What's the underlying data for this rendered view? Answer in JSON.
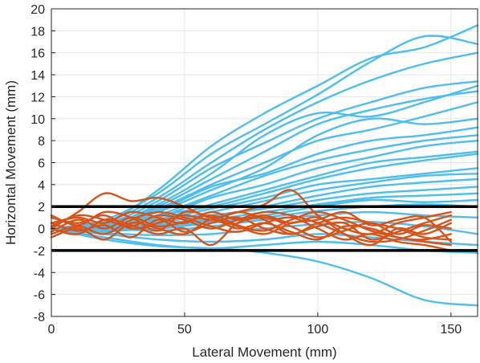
{
  "chart_data": {
    "type": "line",
    "title": "",
    "xlabel": "Lateral Movement (mm)",
    "ylabel": "Horizontal Movement (mm)",
    "xlim": [
      0,
      160
    ],
    "ylim": [
      -8,
      20
    ],
    "xticks": [
      0,
      50,
      100,
      150
    ],
    "yticks": [
      -8,
      -6,
      -4,
      -2,
      0,
      2,
      4,
      6,
      8,
      10,
      12,
      14,
      16,
      18,
      20
    ],
    "grid": true,
    "legend": "none",
    "threshold_lines": [
      {
        "y": 2,
        "color": "#000000"
      },
      {
        "y": -2,
        "color": "#000000"
      }
    ],
    "series": [
      {
        "group": "blue",
        "color": "#4DBEEE",
        "x": [
          0,
          20,
          40,
          60,
          80,
          100,
          120,
          140,
          160
        ],
        "y": [
          0,
          0.5,
          3.5,
          7.5,
          10.5,
          13.0,
          15.5,
          16.5,
          18.5
        ]
      },
      {
        "group": "blue",
        "color": "#4DBEEE",
        "x": [
          0,
          20,
          40,
          60,
          80,
          100,
          120,
          140,
          160
        ],
        "y": [
          0,
          0.8,
          3.2,
          6.8,
          9.5,
          12.2,
          15.2,
          17.5,
          16.8
        ]
      },
      {
        "group": "blue",
        "color": "#4DBEEE",
        "x": [
          0,
          20,
          40,
          60,
          80,
          100,
          120,
          140,
          160
        ],
        "y": [
          0,
          0.6,
          2.8,
          6.0,
          9.0,
          11.5,
          13.5,
          15.0,
          16.0
        ]
      },
      {
        "group": "blue",
        "color": "#4DBEEE",
        "x": [
          0,
          20,
          40,
          60,
          80,
          100,
          120,
          140,
          160
        ],
        "y": [
          0,
          0.4,
          2.5,
          5.5,
          7.8,
          10.0,
          11.5,
          12.8,
          13.4
        ]
      },
      {
        "group": "blue",
        "color": "#4DBEEE",
        "x": [
          0,
          20,
          40,
          60,
          80,
          100,
          120,
          140,
          160
        ],
        "y": [
          0,
          0.2,
          2.2,
          5.0,
          8.5,
          10.5,
          10.2,
          11.5,
          13.0
        ]
      },
      {
        "group": "blue",
        "color": "#4DBEEE",
        "x": [
          0,
          20,
          40,
          60,
          80,
          100,
          120,
          140,
          160
        ],
        "y": [
          0,
          0.3,
          2.0,
          4.5,
          7.0,
          9.5,
          10.8,
          11.8,
          12.5
        ]
      },
      {
        "group": "blue",
        "color": "#4DBEEE",
        "x": [
          0,
          20,
          40,
          60,
          80,
          100,
          120,
          140,
          160
        ],
        "y": [
          0,
          0.5,
          1.8,
          4.0,
          6.0,
          8.0,
          9.0,
          10.2,
          11.5
        ]
      },
      {
        "group": "blue",
        "color": "#4DBEEE",
        "x": [
          0,
          20,
          40,
          60,
          80,
          100,
          120,
          140,
          160
        ],
        "y": [
          0,
          0.1,
          1.5,
          3.5,
          5.5,
          8.5,
          10.0,
          9.5,
          10.0
        ]
      },
      {
        "group": "blue",
        "color": "#4DBEEE",
        "x": [
          0,
          20,
          40,
          60,
          80,
          100,
          120,
          140,
          160
        ],
        "y": [
          0,
          0.2,
          1.6,
          3.8,
          5.0,
          6.8,
          8.0,
          8.5,
          9.2
        ]
      },
      {
        "group": "blue",
        "color": "#4DBEEE",
        "x": [
          0,
          20,
          40,
          60,
          80,
          100,
          120,
          140,
          160
        ],
        "y": [
          0,
          -0.2,
          1.2,
          3.0,
          4.8,
          6.2,
          7.2,
          8.0,
          8.5
        ]
      },
      {
        "group": "blue",
        "color": "#4DBEEE",
        "x": [
          0,
          20,
          40,
          60,
          80,
          100,
          120,
          140,
          160
        ],
        "y": [
          0,
          0.3,
          1.0,
          2.8,
          4.0,
          5.5,
          6.5,
          7.5,
          8.0
        ]
      },
      {
        "group": "blue",
        "color": "#4DBEEE",
        "x": [
          0,
          20,
          40,
          60,
          80,
          100,
          120,
          140,
          160
        ],
        "y": [
          0,
          0.0,
          0.8,
          2.2,
          3.5,
          4.8,
          6.0,
          6.5,
          7.0
        ]
      },
      {
        "group": "blue",
        "color": "#4DBEEE",
        "x": [
          0,
          20,
          40,
          60,
          80,
          100,
          120,
          140,
          160
        ],
        "y": [
          0,
          0.1,
          1.2,
          2.0,
          3.2,
          4.5,
          5.5,
          6.2,
          6.8
        ]
      },
      {
        "group": "blue",
        "color": "#4DBEEE",
        "x": [
          0,
          20,
          40,
          60,
          80,
          100,
          120,
          140,
          160
        ],
        "y": [
          0,
          0.2,
          0.8,
          1.8,
          2.8,
          4.0,
          4.5,
          5.0,
          5.5
        ]
      },
      {
        "group": "blue",
        "color": "#4DBEEE",
        "x": [
          0,
          20,
          40,
          60,
          80,
          100,
          120,
          140,
          160
        ],
        "y": [
          0,
          -0.3,
          0.5,
          1.5,
          2.5,
          3.5,
          4.2,
          4.8,
          5.0
        ]
      },
      {
        "group": "blue",
        "color": "#4DBEEE",
        "x": [
          0,
          20,
          40,
          60,
          80,
          100,
          120,
          140,
          160
        ],
        "y": [
          0,
          0.0,
          0.4,
          1.0,
          2.0,
          3.0,
          3.8,
          4.2,
          4.5
        ]
      },
      {
        "group": "blue",
        "color": "#4DBEEE",
        "x": [
          0,
          20,
          40,
          60,
          80,
          100,
          120,
          140,
          160
        ],
        "y": [
          0,
          0.2,
          0.6,
          1.2,
          1.8,
          2.6,
          3.2,
          3.5,
          3.8
        ]
      },
      {
        "group": "blue",
        "color": "#4DBEEE",
        "x": [
          0,
          20,
          40,
          60,
          80,
          100,
          120,
          140,
          160
        ],
        "y": [
          0,
          -0.1,
          0.3,
          0.8,
          1.5,
          2.2,
          2.8,
          3.0,
          3.2
        ]
      },
      {
        "group": "blue",
        "color": "#4DBEEE",
        "x": [
          0,
          20,
          40,
          60,
          80,
          100,
          120,
          140,
          160
        ],
        "y": [
          0,
          0.1,
          0.2,
          0.6,
          1.2,
          2.0,
          2.6,
          2.4,
          2.6
        ]
      },
      {
        "group": "blue",
        "color": "#4DBEEE",
        "x": [
          0,
          20,
          40,
          60,
          80,
          100,
          120,
          140,
          160
        ],
        "y": [
          0,
          -0.2,
          0.0,
          0.5,
          1.0,
          1.6,
          2.0,
          2.2,
          2.0
        ]
      },
      {
        "group": "blue",
        "color": "#4DBEEE",
        "x": [
          0,
          20,
          40,
          60,
          80,
          100,
          120,
          140,
          160
        ],
        "y": [
          0,
          0.0,
          -0.2,
          0.2,
          0.8,
          1.2,
          1.5,
          1.2,
          1.0
        ]
      },
      {
        "group": "blue",
        "color": "#4DBEEE",
        "x": [
          0,
          20,
          40,
          60,
          80,
          100,
          120,
          140,
          160
        ],
        "y": [
          0,
          -0.4,
          -0.6,
          -0.5,
          0.0,
          0.4,
          0.6,
          0.2,
          -0.5
        ]
      },
      {
        "group": "blue",
        "color": "#4DBEEE",
        "x": [
          0,
          20,
          40,
          60,
          80,
          100,
          120,
          140,
          160
        ],
        "y": [
          0,
          -0.5,
          -1.0,
          -1.2,
          -1.0,
          -0.5,
          -0.8,
          -1.2,
          -1.5
        ]
      },
      {
        "group": "blue",
        "color": "#4DBEEE",
        "x": [
          0,
          20,
          40,
          60,
          80,
          100,
          120,
          140,
          160
        ],
        "y": [
          0,
          -0.8,
          -1.5,
          -1.8,
          -1.5,
          -1.2,
          -1.5,
          -2.0,
          -2.2
        ]
      },
      {
        "group": "blue",
        "color": "#4DBEEE",
        "x": [
          0,
          20,
          40,
          60,
          80,
          100,
          120,
          140,
          160
        ],
        "y": [
          0,
          -1.0,
          -1.6,
          -1.8,
          -2.2,
          -3.0,
          -4.5,
          -6.5,
          -7.0
        ]
      },
      {
        "group": "orange",
        "color": "#D95319",
        "x": [
          0,
          10,
          20,
          30,
          40,
          50,
          60,
          70,
          80,
          90,
          100,
          110,
          120,
          130,
          140,
          150
        ],
        "y": [
          0,
          1.5,
          3.2,
          2.5,
          2.8,
          2.0,
          1.0,
          1.5,
          2.2,
          3.5,
          1.2,
          0.0,
          -0.5,
          0.5,
          1.0,
          1.5
        ]
      },
      {
        "group": "orange",
        "color": "#D95319",
        "x": [
          0,
          10,
          20,
          30,
          40,
          50,
          60,
          70,
          80,
          90,
          100,
          110,
          120,
          130,
          140,
          150
        ],
        "y": [
          0.5,
          1.0,
          0.5,
          1.5,
          1.0,
          0.5,
          1.5,
          0.8,
          1.2,
          0.5,
          1.0,
          -0.5,
          -1.5,
          0.0,
          -0.5,
          0.5
        ]
      },
      {
        "group": "orange",
        "color": "#D95319",
        "x": [
          0,
          10,
          20,
          30,
          40,
          50,
          60,
          70,
          80,
          90,
          100,
          110,
          120,
          130,
          140,
          150
        ],
        "y": [
          -0.5,
          0.2,
          -0.5,
          0.8,
          1.5,
          1.0,
          0.2,
          -0.3,
          0.5,
          1.0,
          0.0,
          -1.0,
          -0.5,
          -1.2,
          -1.5,
          -2.0
        ]
      },
      {
        "group": "orange",
        "color": "#D95319",
        "x": [
          0,
          10,
          20,
          30,
          40,
          50,
          60,
          70,
          80,
          90,
          100,
          110,
          120,
          130,
          140,
          150
        ],
        "y": [
          1.0,
          0.5,
          1.2,
          0.0,
          0.5,
          1.2,
          0.8,
          1.5,
          0.8,
          -0.5,
          0.5,
          1.0,
          0.5,
          0.0,
          -0.8,
          -1.0
        ]
      },
      {
        "group": "orange",
        "color": "#D95319",
        "x": [
          0,
          10,
          20,
          30,
          40,
          50,
          60,
          70,
          80,
          90,
          100,
          110,
          120,
          130,
          140,
          150
        ],
        "y": [
          0.0,
          -0.5,
          0.8,
          0.3,
          -0.5,
          0.0,
          -1.5,
          0.5,
          1.0,
          0.2,
          -0.8,
          -0.2,
          0.5,
          -0.5,
          0.3,
          0.0
        ]
      },
      {
        "group": "orange",
        "color": "#D95319",
        "x": [
          0,
          10,
          20,
          30,
          40,
          50,
          60,
          70,
          80,
          90,
          100,
          110,
          120,
          130,
          140,
          150
        ],
        "y": [
          -0.3,
          0.8,
          0.0,
          1.0,
          0.2,
          0.6,
          1.2,
          0.3,
          -0.2,
          0.8,
          1.5,
          0.8,
          -0.2,
          -0.8,
          -1.2,
          -1.5
        ]
      },
      {
        "group": "orange",
        "color": "#D95319",
        "x": [
          0,
          10,
          20,
          30,
          40,
          50,
          60,
          70,
          80,
          90,
          100,
          110,
          120,
          130,
          140,
          150
        ],
        "y": [
          0.5,
          -0.2,
          0.3,
          -0.8,
          0.8,
          -0.3,
          0.5,
          1.0,
          0.0,
          -0.5,
          0.2,
          0.5,
          -1.0,
          -0.3,
          0.5,
          1.2
        ]
      },
      {
        "group": "orange",
        "color": "#D95319",
        "x": [
          0,
          10,
          20,
          30,
          40,
          50,
          60,
          70,
          80,
          90,
          100,
          110,
          120,
          130,
          140,
          150
        ],
        "y": [
          0.2,
          1.2,
          0.8,
          0.2,
          1.2,
          0.8,
          0.0,
          0.8,
          1.5,
          1.2,
          0.5,
          -0.5,
          -1.2,
          -1.0,
          -0.2,
          0.8
        ]
      },
      {
        "group": "orange",
        "color": "#D95319",
        "x": [
          0,
          10,
          20,
          30,
          40,
          50,
          60,
          70,
          80,
          90,
          100,
          110,
          120,
          130,
          140,
          150
        ],
        "y": [
          -0.8,
          0.0,
          -1.0,
          0.5,
          0.0,
          -0.5,
          0.8,
          0.0,
          0.5,
          -0.3,
          -1.0,
          0.2,
          0.0,
          -0.8,
          -1.0,
          -0.5
        ]
      },
      {
        "group": "orange",
        "color": "#D95319",
        "x": [
          0,
          10,
          20,
          30,
          40,
          50,
          60,
          70,
          80,
          90,
          100,
          110,
          120,
          130,
          140,
          150
        ],
        "y": [
          1.2,
          0.3,
          1.5,
          1.0,
          -0.2,
          1.5,
          1.0,
          0.2,
          -0.5,
          0.5,
          0.8,
          1.5,
          0.3,
          0.8,
          1.0,
          -1.2
        ]
      }
    ]
  }
}
